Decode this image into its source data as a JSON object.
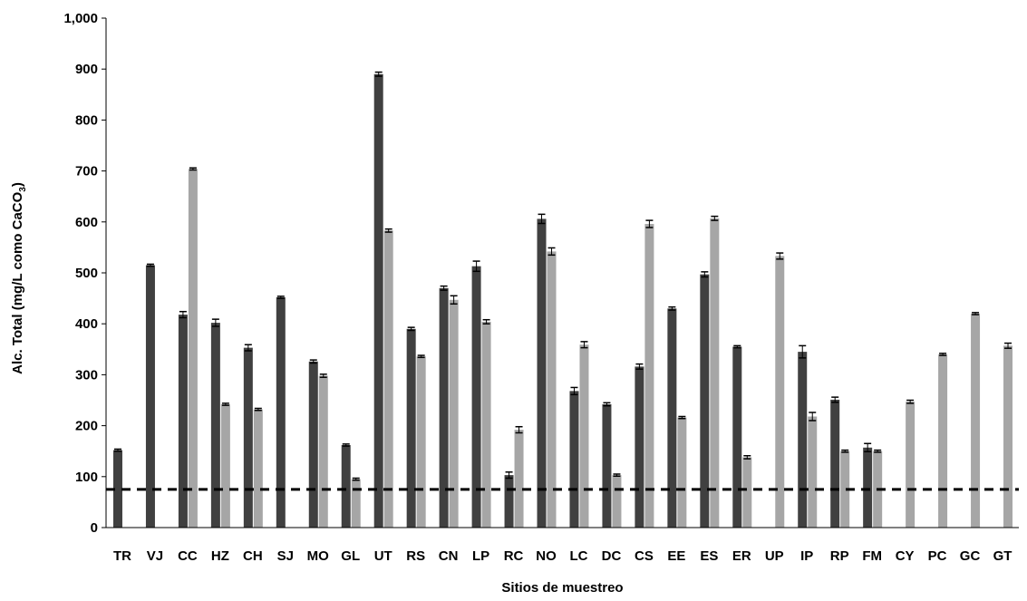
{
  "chart_data": {
    "type": "bar",
    "xlabel": "Sitios de muestreo",
    "ylabel_main": "Alc. Total (mg/L como CaCO",
    "ylabel_sub": "3",
    "ylabel_end": ")",
    "ylim": [
      0,
      1000
    ],
    "yticks": [
      0,
      100,
      200,
      300,
      400,
      500,
      600,
      700,
      800,
      900,
      1000
    ],
    "ytick_labels": [
      "0",
      "100",
      "200",
      "300",
      "400",
      "500",
      "600",
      "700",
      "800",
      "900",
      "1,000"
    ],
    "reference_line": 75,
    "grid": false,
    "legend": "none",
    "categories": [
      "TR",
      "VJ",
      "CC",
      "HZ",
      "CH",
      "SJ",
      "MO",
      "GL",
      "UT",
      "RS",
      "CN",
      "LP",
      "RC",
      "NO",
      "LC",
      "DC",
      "CS",
      "EE",
      "ES",
      "ER",
      "UP",
      "IP",
      "RP",
      "FM",
      "CY",
      "PC",
      "GC",
      "GT"
    ],
    "series": [
      {
        "color": "#404040",
        "values": [
          152,
          515,
          418,
          402,
          353,
          452,
          326,
          162,
          890,
          390,
          470,
          513,
          103,
          606,
          268,
          242,
          316,
          430,
          497,
          355,
          null,
          345,
          251,
          157,
          null,
          null,
          null,
          null
        ],
        "errors": [
          2,
          2,
          6,
          7,
          6,
          2,
          3,
          2,
          4,
          3,
          4,
          10,
          6,
          9,
          7,
          3,
          5,
          3,
          5,
          2,
          null,
          12,
          5,
          8,
          null,
          null,
          null,
          null
        ]
      },
      {
        "color": "#a6a6a6",
        "values": [
          null,
          null,
          704,
          242,
          232,
          null,
          298,
          95,
          583,
          336,
          447,
          404,
          192,
          542,
          359,
          103,
          596,
          216,
          607,
          138,
          533,
          218,
          150,
          150,
          247,
          340,
          420,
          357
        ],
        "errors": [
          null,
          null,
          2,
          2,
          2,
          null,
          3,
          2,
          3,
          2,
          8,
          4,
          6,
          7,
          6,
          2,
          7,
          2,
          4,
          3,
          6,
          8,
          2,
          2,
          3,
          2,
          2,
          5
        ]
      }
    ]
  }
}
